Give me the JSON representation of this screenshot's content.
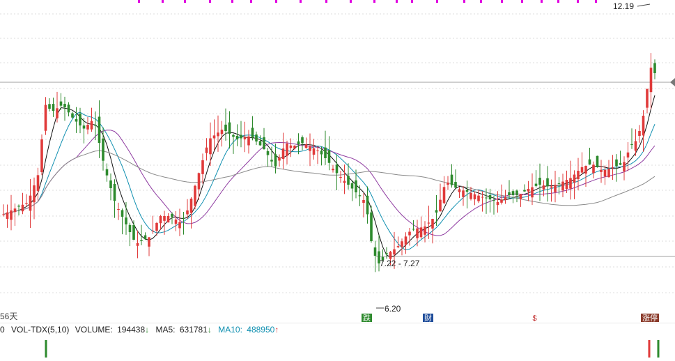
{
  "chart_data": {
    "type": "candlestick",
    "colors": {
      "up": "#e03a3a",
      "down": "#2d8a2d",
      "ma5": "#111111",
      "ma10": "#0f8fb0",
      "ma20": "#8e3aa0",
      "ma60": "#8a8a8a",
      "marker_magenta": "#e000e0",
      "badge_green": "#2d8a2d",
      "badge_blue": "#1f4d9a",
      "badge_red": "#c23030",
      "badge_brown": "#8a3a2a"
    },
    "price_ylim": [
      6.2,
      12.19
    ],
    "annotations": {
      "high_label": "12.19",
      "low_label": "6.20",
      "range_label": "7.22 - 7.27",
      "days_label": "56天"
    },
    "badges": [
      {
        "text": "跌",
        "kind": "green"
      },
      {
        "text": "财",
        "kind": "blue"
      },
      {
        "text": "$",
        "kind": "red"
      },
      {
        "text": "涨停",
        "kind": "brown"
      }
    ],
    "volume_indicator": {
      "prefix": "0",
      "name": "VOL-TDX(5,10)",
      "volume_label": "VOLUME:",
      "volume_value": "194438",
      "volume_arrow": "↓",
      "ma5_label": "MA5:",
      "ma5_value": "631781",
      "ma5_arrow": "↓",
      "ma10_label": "MA10:",
      "ma10_value": "488950",
      "ma10_arrow": "↑"
    }
  }
}
